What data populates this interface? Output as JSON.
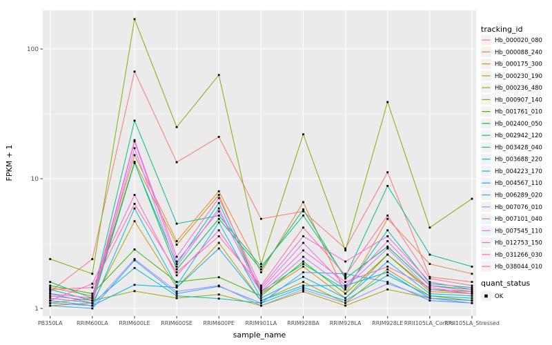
{
  "chart_data": {
    "type": "line",
    "title": "",
    "xlabel": "sample_name",
    "ylabel": "FPKM + 1",
    "y_scale": "log10",
    "y_ticks": [
      "1",
      "10",
      "100"
    ],
    "y_tick_values": [
      1,
      10,
      100
    ],
    "y_minor_tick_values": [
      3.162,
      31.62
    ],
    "ylim": [
      1,
      200
    ],
    "grid": "major-and-minor-white-on-gray",
    "legend_position": "right",
    "panel_background": "#EBEBEB",
    "grid_color": "#FFFFFF",
    "tick_label_color": "#4D4D4D",
    "point_marker": {
      "shape": "square",
      "color": "#000000",
      "size": 2.8
    },
    "x_categories": [
      "PB350LA",
      "RRIM600LA",
      "RRIM600LE",
      "RRIM600SE",
      "RRIM600PE",
      "RRIM901LA",
      "RRIM928BA",
      "RRIM928LA",
      "RRIM928LE",
      "RRII105LA_Control",
      "RRII105LA_Stressed"
    ],
    "legends": {
      "tracking_id": {
        "title": "tracking_id"
      },
      "quant_status": {
        "title": "quant_status",
        "items": [
          {
            "label": "OK",
            "marker": "black-square"
          }
        ]
      }
    },
    "series": [
      {
        "name": "Hb_000020_080",
        "color": "#F8766D",
        "values": [
          1.35,
          2.4,
          67,
          13.4,
          21,
          4.9,
          5.6,
          2.9,
          11.2,
          1.75,
          1.6
        ]
      },
      {
        "name": "Hb_000088_240",
        "color": "#EA8331",
        "values": [
          1.45,
          1.25,
          15.2,
          3.3,
          8.0,
          1.9,
          6.6,
          1.3,
          4.9,
          2.2,
          1.85
        ]
      },
      {
        "name": "Hb_000175_300",
        "color": "#D89000",
        "values": [
          1.1,
          1.2,
          13.5,
          3.1,
          7.5,
          1.3,
          2.1,
          1.2,
          2.6,
          1.35,
          1.3
        ]
      },
      {
        "name": "Hb_000230_190",
        "color": "#C09B00",
        "values": [
          1.05,
          1.1,
          4.7,
          1.45,
          3.2,
          1.15,
          1.6,
          1.1,
          2.0,
          1.25,
          1.15
        ]
      },
      {
        "name": "Hb_000236_480",
        "color": "#A3A500",
        "values": [
          1.25,
          1.15,
          1.36,
          1.2,
          1.28,
          1.05,
          1.35,
          1.05,
          1.4,
          1.2,
          1.1
        ]
      },
      {
        "name": "Hb_000907_140",
        "color": "#7CAE00",
        "values": [
          2.4,
          1.85,
          170,
          25,
          63,
          2.2,
          22,
          2.8,
          39,
          4.2,
          7.0
        ]
      },
      {
        "name": "Hb_001761_010",
        "color": "#39B600",
        "values": [
          1.5,
          1.3,
          2.85,
          1.6,
          1.74,
          1.25,
          2.3,
          1.3,
          2.6,
          1.4,
          1.35
        ]
      },
      {
        "name": "Hb_002400_050",
        "color": "#00BB4E",
        "values": [
          1.2,
          1.1,
          13.3,
          2.0,
          4.9,
          2.0,
          5.8,
          1.7,
          3.0,
          1.5,
          1.4
        ]
      },
      {
        "name": "Hb_002942_120",
        "color": "#00BF7D",
        "values": [
          1.6,
          1.2,
          28,
          4.5,
          5.2,
          2.1,
          5.2,
          1.75,
          8.8,
          2.6,
          2.1
        ]
      },
      {
        "name": "Hb_003428_040",
        "color": "#00C1A7",
        "values": [
          1.4,
          1.15,
          13.2,
          2.2,
          6.5,
          1.35,
          2.2,
          1.4,
          4.0,
          1.55,
          1.45
        ]
      },
      {
        "name": "Hb_003688_220",
        "color": "#00BFC4",
        "values": [
          1.3,
          1.1,
          2.05,
          1.25,
          1.19,
          1.1,
          1.45,
          1.15,
          1.8,
          1.25,
          1.2
        ]
      },
      {
        "name": "Hb_004223_170",
        "color": "#00BAE5",
        "values": [
          1.15,
          1.05,
          5.9,
          1.5,
          4.6,
          1.2,
          1.75,
          1.2,
          2.3,
          1.3,
          1.25
        ]
      },
      {
        "name": "Hb_004567_110",
        "color": "#00B0F6",
        "values": [
          1.1,
          1.05,
          1.52,
          1.45,
          2.9,
          1.15,
          1.5,
          1.5,
          1.9,
          1.2,
          1.15
        ]
      },
      {
        "name": "Hb_006289_020",
        "color": "#35A2FF",
        "values": [
          1.05,
          1.0,
          2.35,
          1.3,
          1.48,
          1.1,
          1.9,
          1.85,
          1.6,
          1.15,
          1.1
        ]
      },
      {
        "name": "Hb_007076_010",
        "color": "#9590FF",
        "values": [
          1.1,
          1.05,
          2.4,
          1.35,
          1.5,
          1.05,
          1.4,
          1.1,
          1.55,
          1.2,
          1.1
        ]
      },
      {
        "name": "Hb_007101_040",
        "color": "#C77CFF",
        "values": [
          1.2,
          1.1,
          17.2,
          2.1,
          5.9,
          1.3,
          2.5,
          1.45,
          2.9,
          1.4,
          1.3
        ]
      },
      {
        "name": "Hb_007545_110",
        "color": "#E76BF3",
        "values": [
          1.25,
          1.15,
          19.4,
          2.3,
          5.6,
          1.4,
          3.2,
          1.5,
          3.3,
          1.5,
          1.35
        ]
      },
      {
        "name": "Hb_012753_150",
        "color": "#FA62DB",
        "values": [
          1.3,
          1.2,
          19.8,
          2.5,
          7.1,
          1.45,
          3.6,
          2.3,
          3.6,
          1.6,
          1.4
        ]
      },
      {
        "name": "Hb_031266_030",
        "color": "#FF61CC",
        "values": [
          1.15,
          1.55,
          7.5,
          1.8,
          4.0,
          1.35,
          2.8,
          1.6,
          2.1,
          1.45,
          1.3
        ]
      },
      {
        "name": "Hb_038044_010",
        "color": "#FF6A98",
        "values": [
          1.4,
          1.45,
          6.4,
          1.9,
          3.6,
          1.5,
          4.2,
          1.8,
          5.2,
          1.7,
          1.5
        ]
      }
    ]
  }
}
